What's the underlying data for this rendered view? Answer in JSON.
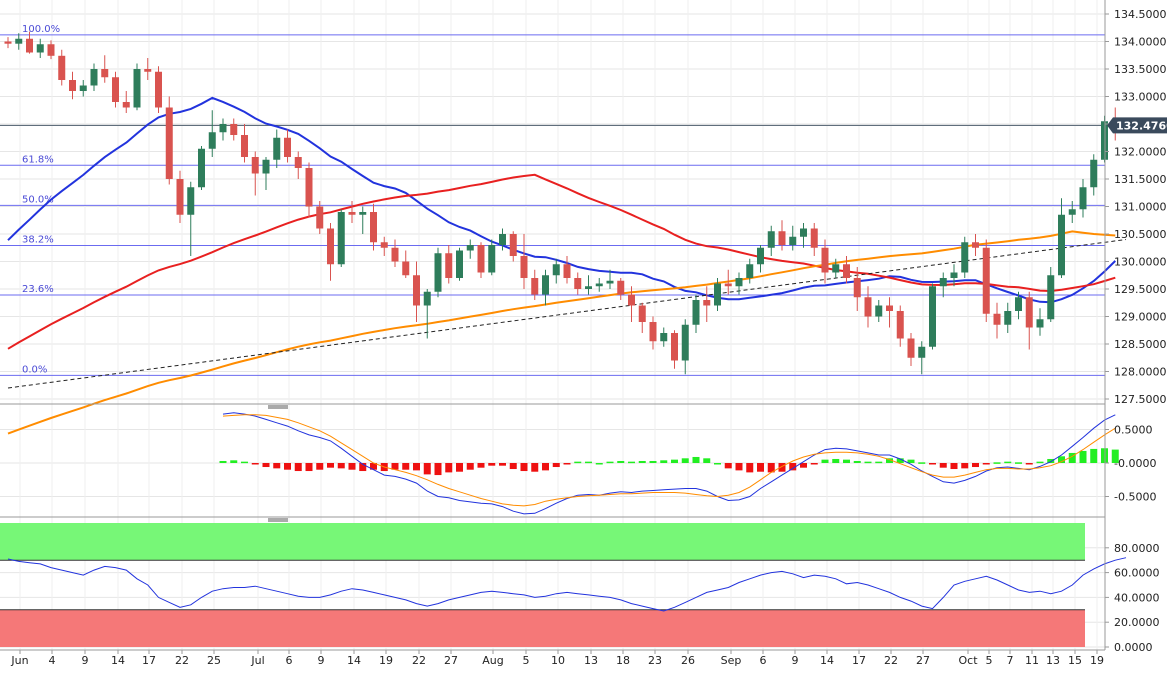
{
  "chart_data": [
    {
      "type": "candlestick",
      "title": "",
      "y_ticks": [
        "134.5000",
        "134.0000",
        "133.5000",
        "133.0000",
        "132.5000",
        "132.0000",
        "131.5000",
        "131.0000",
        "130.5000",
        "130.0000",
        "129.5000",
        "129.0000",
        "128.5000",
        "128.0000",
        "127.5000"
      ],
      "y_range": [
        127.45,
        134.6
      ],
      "current_price": 132.476,
      "current_price_label": "132.4760",
      "fibonacci": [
        {
          "label": "100.0%",
          "value": 134.12
        },
        {
          "label": "61.8%",
          "value": 131.75
        },
        {
          "label": "50.0%",
          "value": 131.02
        },
        {
          "label": "38.2%",
          "value": 130.29
        },
        {
          "label": "23.6%",
          "value": 129.39
        },
        {
          "label": "0.0%",
          "value": 127.93
        }
      ],
      "x_labels": [
        "Jun",
        "4",
        "9",
        "14",
        "17",
        "22",
        "25",
        "Jul",
        "6",
        "9",
        "14",
        "19",
        "22",
        "27",
        "Aug",
        "5",
        "10",
        "13",
        "18",
        "23",
        "26",
        "Sep",
        "6",
        "9",
        "14",
        "17",
        "22",
        "27",
        "Oct",
        "5",
        "7",
        "11",
        "13",
        "15",
        "19"
      ],
      "trendline": {
        "start": [
          0,
          127.7
        ],
        "end": [
          104,
          130.4
        ]
      },
      "candles": [
        [
          134.0,
          134.08,
          133.88,
          133.96
        ],
        [
          133.96,
          134.15,
          133.85,
          134.05
        ],
        [
          134.05,
          134.18,
          133.78,
          133.8
        ],
        [
          133.8,
          134.05,
          133.7,
          133.95
        ],
        [
          133.95,
          134.02,
          133.68,
          133.74
        ],
        [
          133.74,
          133.85,
          133.2,
          133.3
        ],
        [
          133.3,
          133.45,
          132.95,
          133.1
        ],
        [
          133.1,
          133.3,
          133.0,
          133.2
        ],
        [
          133.2,
          133.6,
          133.1,
          133.5
        ],
        [
          133.5,
          133.75,
          133.25,
          133.35
        ],
        [
          133.35,
          133.45,
          132.8,
          132.9
        ],
        [
          132.9,
          133.1,
          132.7,
          132.8
        ],
        [
          132.8,
          133.6,
          132.75,
          133.5
        ],
        [
          133.5,
          133.7,
          133.3,
          133.45
        ],
        [
          133.45,
          133.55,
          132.7,
          132.8
        ],
        [
          132.8,
          133.0,
          131.4,
          131.5
        ],
        [
          131.5,
          131.65,
          130.7,
          130.85
        ],
        [
          130.85,
          131.45,
          130.1,
          131.35
        ],
        [
          131.35,
          132.1,
          131.3,
          132.05
        ],
        [
          132.05,
          132.75,
          131.9,
          132.35
        ],
        [
          132.35,
          132.6,
          132.2,
          132.5
        ],
        [
          132.5,
          132.6,
          132.2,
          132.3
        ],
        [
          132.3,
          132.5,
          131.8,
          131.9
        ],
        [
          131.9,
          132.0,
          131.2,
          131.6
        ],
        [
          131.6,
          131.9,
          131.3,
          131.85
        ],
        [
          131.85,
          132.4,
          131.7,
          132.25
        ],
        [
          132.25,
          132.4,
          131.8,
          131.9
        ],
        [
          131.9,
          132.0,
          131.5,
          131.7
        ],
        [
          131.7,
          131.8,
          130.8,
          131.0
        ],
        [
          131.0,
          131.1,
          130.5,
          130.6
        ],
        [
          130.6,
          130.7,
          129.65,
          129.95
        ],
        [
          129.95,
          130.95,
          129.9,
          130.9
        ],
        [
          130.9,
          131.1,
          130.7,
          130.85
        ],
        [
          130.85,
          131.0,
          130.5,
          130.9
        ],
        [
          130.9,
          131.05,
          130.2,
          130.35
        ],
        [
          130.35,
          130.45,
          130.1,
          130.25
        ],
        [
          130.25,
          130.4,
          129.9,
          130.0
        ],
        [
          130.0,
          130.2,
          129.7,
          129.75
        ],
        [
          129.75,
          130.0,
          128.9,
          129.2
        ],
        [
          129.2,
          129.5,
          128.6,
          129.45
        ],
        [
          129.45,
          130.25,
          129.35,
          130.15
        ],
        [
          130.15,
          130.3,
          129.6,
          129.7
        ],
        [
          129.7,
          130.25,
          129.65,
          130.2
        ],
        [
          130.2,
          130.4,
          130.05,
          130.3
        ],
        [
          130.3,
          130.35,
          129.7,
          129.8
        ],
        [
          129.8,
          130.4,
          129.75,
          130.3
        ],
        [
          130.3,
          130.6,
          130.2,
          130.5
        ],
        [
          130.5,
          130.55,
          130.0,
          130.1
        ],
        [
          130.1,
          130.5,
          129.5,
          129.7
        ],
        [
          129.7,
          129.85,
          129.3,
          129.4
        ],
        [
          129.4,
          129.85,
          129.2,
          129.75
        ],
        [
          129.75,
          130.05,
          129.6,
          129.95
        ],
        [
          129.95,
          130.1,
          129.6,
          129.7
        ],
        [
          129.7,
          129.8,
          129.4,
          129.5
        ],
        [
          129.5,
          129.75,
          129.4,
          129.55
        ],
        [
          129.55,
          129.7,
          129.45,
          129.6
        ],
        [
          129.6,
          129.85,
          129.5,
          129.65
        ],
        [
          129.65,
          129.7,
          129.3,
          129.4
        ],
        [
          129.4,
          129.55,
          128.9,
          129.2
        ],
        [
          129.2,
          129.25,
          128.7,
          128.9
        ],
        [
          128.9,
          129.0,
          128.4,
          128.55
        ],
        [
          128.55,
          128.8,
          128.45,
          128.7
        ],
        [
          128.7,
          128.75,
          128.05,
          128.2
        ],
        [
          128.2,
          128.95,
          127.95,
          128.85
        ],
        [
          128.85,
          129.4,
          128.7,
          129.3
        ],
        [
          129.3,
          129.55,
          128.9,
          129.2
        ],
        [
          129.2,
          129.7,
          129.1,
          129.6
        ],
        [
          129.6,
          129.85,
          129.4,
          129.55
        ],
        [
          129.55,
          129.8,
          129.4,
          129.7
        ],
        [
          129.7,
          130.05,
          129.6,
          129.95
        ],
        [
          129.95,
          130.3,
          129.8,
          130.25
        ],
        [
          130.25,
          130.65,
          130.1,
          130.55
        ],
        [
          130.55,
          130.75,
          130.2,
          130.3
        ],
        [
          130.3,
          130.65,
          130.2,
          130.45
        ],
        [
          130.45,
          130.7,
          130.25,
          130.6
        ],
        [
          130.6,
          130.7,
          130.1,
          130.25
        ],
        [
          130.25,
          130.4,
          129.6,
          129.8
        ],
        [
          129.8,
          130.05,
          129.7,
          129.95
        ],
        [
          129.95,
          130.1,
          129.6,
          129.7
        ],
        [
          129.7,
          129.9,
          129.1,
          129.35
        ],
        [
          129.35,
          129.55,
          128.8,
          129.0
        ],
        [
          129.0,
          129.3,
          128.9,
          129.2
        ],
        [
          129.2,
          129.35,
          128.8,
          129.1
        ],
        [
          129.1,
          129.2,
          128.45,
          128.6
        ],
        [
          128.6,
          128.7,
          128.1,
          128.25
        ],
        [
          128.25,
          128.55,
          127.95,
          128.45
        ],
        [
          128.45,
          129.6,
          128.4,
          129.55
        ],
        [
          129.55,
          129.8,
          129.35,
          129.7
        ],
        [
          129.7,
          129.95,
          129.55,
          129.8
        ],
        [
          129.8,
          130.45,
          129.7,
          130.35
        ],
        [
          130.35,
          130.5,
          130.1,
          130.25
        ],
        [
          130.25,
          130.4,
          128.9,
          129.05
        ],
        [
          129.05,
          129.25,
          128.6,
          128.85
        ],
        [
          128.85,
          129.25,
          128.7,
          129.1
        ],
        [
          129.1,
          129.45,
          128.95,
          129.35
        ],
        [
          129.35,
          129.45,
          128.4,
          128.8
        ],
        [
          128.8,
          129.15,
          128.65,
          128.95
        ],
        [
          128.95,
          129.9,
          128.9,
          129.75
        ],
        [
          129.75,
          131.15,
          129.7,
          130.85
        ],
        [
          130.85,
          131.1,
          130.7,
          130.95
        ],
        [
          130.95,
          131.5,
          130.8,
          131.35
        ],
        [
          131.35,
          131.95,
          131.2,
          131.85
        ],
        [
          131.85,
          132.65,
          131.8,
          132.55
        ],
        [
          132.55,
          132.8,
          132.2,
          132.48
        ]
      ]
    },
    {
      "type": "macd",
      "y_ticks": [
        "0.5000",
        "-0.0000",
        "-0.5000"
      ],
      "y_range": [
        -0.85,
        0.8
      ],
      "macd_line": [
        0.73,
        0.75,
        0.73,
        0.7,
        0.65,
        0.6,
        0.55,
        0.48,
        0.42,
        0.38,
        0.33,
        0.22,
        0.1,
        -0.02,
        -0.1,
        -0.18,
        -0.2,
        -0.24,
        -0.3,
        -0.42,
        -0.5,
        -0.52,
        -0.56,
        -0.58,
        -0.6,
        -0.61,
        -0.65,
        -0.72,
        -0.76,
        -0.75,
        -0.68,
        -0.6,
        -0.53,
        -0.48,
        -0.47,
        -0.48,
        -0.45,
        -0.43,
        -0.44,
        -0.42,
        -0.41,
        -0.4,
        -0.39,
        -0.38,
        -0.38,
        -0.42,
        -0.5,
        -0.56,
        -0.55,
        -0.5,
        -0.38,
        -0.28,
        -0.18,
        -0.08,
        0.02,
        0.12,
        0.2,
        0.22,
        0.21,
        0.18,
        0.15,
        0.12,
        0.12,
        0.06,
        -0.02,
        -0.12,
        -0.2,
        -0.28,
        -0.3,
        -0.26,
        -0.2,
        -0.12,
        -0.07,
        -0.06,
        -0.08,
        -0.1,
        -0.05,
        0.02,
        0.12,
        0.25,
        0.38,
        0.52,
        0.64,
        0.72
      ],
      "signal_line": [
        0.7,
        0.71,
        0.72,
        0.72,
        0.71,
        0.68,
        0.65,
        0.6,
        0.54,
        0.48,
        0.4,
        0.3,
        0.2,
        0.1,
        0.0,
        -0.06,
        -0.1,
        -0.14,
        -0.19,
        -0.25,
        -0.32,
        -0.38,
        -0.43,
        -0.48,
        -0.53,
        -0.57,
        -0.61,
        -0.63,
        -0.64,
        -0.62,
        -0.57,
        -0.54,
        -0.52,
        -0.5,
        -0.49,
        -0.48,
        -0.47,
        -0.46,
        -0.46,
        -0.45,
        -0.44,
        -0.44,
        -0.44,
        -0.45,
        -0.47,
        -0.49,
        -0.5,
        -0.48,
        -0.44,
        -0.36,
        -0.25,
        -0.14,
        -0.05,
        0.03,
        0.09,
        0.13,
        0.15,
        0.16,
        0.16,
        0.15,
        0.13,
        0.1,
        0.05,
        -0.01,
        -0.07,
        -0.13,
        -0.18,
        -0.21,
        -0.21,
        -0.18,
        -0.14,
        -0.1,
        -0.08,
        -0.08,
        -0.09,
        -0.09,
        -0.07,
        -0.04,
        0.02,
        0.1,
        0.2,
        0.31,
        0.42,
        0.52
      ],
      "histogram": [
        0.03,
        0.04,
        0.02,
        -0.02,
        -0.06,
        -0.08,
        -0.1,
        -0.12,
        -0.12,
        -0.1,
        -0.07,
        -0.08,
        -0.1,
        -0.12,
        -0.1,
        -0.12,
        -0.1,
        -0.1,
        -0.11,
        -0.17,
        -0.18,
        -0.14,
        -0.13,
        -0.1,
        -0.07,
        -0.04,
        -0.04,
        -0.09,
        -0.12,
        -0.13,
        -0.11,
        -0.06,
        -0.01,
        0.02,
        0.02,
        0.0,
        0.02,
        0.03,
        0.02,
        0.03,
        0.03,
        0.04,
        0.05,
        0.07,
        0.09,
        0.07,
        0.0,
        -0.08,
        -0.11,
        -0.14,
        -0.13,
        -0.14,
        -0.13,
        -0.11,
        -0.07,
        -0.01,
        0.05,
        0.06,
        0.05,
        0.03,
        0.02,
        0.02,
        0.07,
        0.07,
        0.05,
        0.01,
        -0.02,
        -0.07,
        -0.09,
        -0.08,
        -0.06,
        -0.02,
        0.01,
        0.02,
        0.01,
        -0.01,
        0.02,
        0.06,
        0.1,
        0.15,
        0.18,
        0.21,
        0.22,
        0.2
      ]
    },
    {
      "type": "line",
      "y_ticks": [
        "80.0000",
        "60.0000",
        "40.0000",
        "20.0000",
        "0.0000"
      ],
      "y_range": [
        0,
        100
      ],
      "overbought": 70,
      "oversold": 30,
      "values": [
        71,
        69,
        68,
        67,
        64,
        62,
        60,
        58,
        62,
        65,
        64,
        62,
        55,
        50,
        40,
        36,
        32,
        34,
        40,
        45,
        47,
        48,
        48,
        49,
        47,
        45,
        43,
        41,
        40,
        40,
        42,
        45,
        47,
        46,
        44,
        42,
        40,
        38,
        35,
        33,
        35,
        38,
        40,
        42,
        44,
        45,
        44,
        43,
        42,
        40,
        41,
        43,
        44,
        43,
        42,
        41,
        40,
        38,
        35,
        33,
        31,
        29,
        32,
        36,
        40,
        44,
        46,
        48,
        52,
        55,
        58,
        60,
        61,
        59,
        56,
        58,
        57,
        55,
        51,
        52,
        50,
        47,
        44,
        40,
        37,
        33,
        31,
        40,
        50,
        53,
        55,
        57,
        54,
        50,
        46,
        44,
        45,
        43,
        45,
        50,
        58,
        63,
        67,
        70,
        72
      ]
    }
  ]
}
